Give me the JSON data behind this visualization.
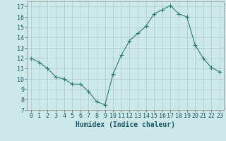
{
  "x": [
    0,
    1,
    2,
    3,
    4,
    5,
    6,
    7,
    8,
    9,
    10,
    11,
    12,
    13,
    14,
    15,
    16,
    17,
    18,
    19,
    20,
    21,
    22,
    23
  ],
  "y": [
    12.0,
    11.6,
    11.0,
    10.2,
    10.0,
    9.5,
    9.5,
    8.8,
    7.8,
    7.5,
    10.5,
    12.3,
    13.7,
    14.4,
    15.1,
    16.3,
    16.7,
    17.1,
    16.3,
    16.0,
    13.3,
    12.0,
    11.1,
    10.7
  ],
  "line_color": "#2d7d6e",
  "marker": "+",
  "marker_size": 4,
  "marker_color": "#2d7d6e",
  "bg_color": "#cce8e8",
  "grid_color": "#b0d0d0",
  "xlabel": "Humidex (Indice chaleur)",
  "xlabel_fontsize": 7,
  "tick_fontsize": 6,
  "xlim": [
    -0.5,
    23.5
  ],
  "ylim": [
    7,
    17.5
  ],
  "yticks": [
    7,
    8,
    9,
    10,
    11,
    12,
    13,
    14,
    15,
    16,
    17
  ],
  "xticks": [
    0,
    1,
    2,
    3,
    4,
    5,
    6,
    7,
    8,
    9,
    10,
    11,
    12,
    13,
    14,
    15,
    16,
    17,
    18,
    19,
    20,
    21,
    22,
    23
  ]
}
